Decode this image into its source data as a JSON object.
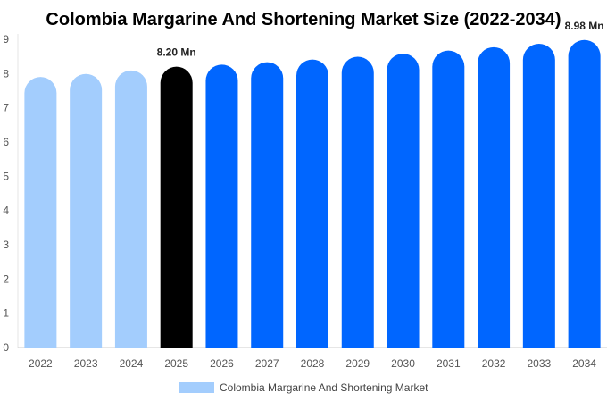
{
  "chart_data": {
    "type": "bar",
    "title": "Colombia Margarine And Shortening Market Size (2022-2034)",
    "xlabel": "",
    "ylabel": "",
    "categories": [
      "2022",
      "2023",
      "2024",
      "2025",
      "2026",
      "2027",
      "2028",
      "2029",
      "2030",
      "2031",
      "2032",
      "2033",
      "2034"
    ],
    "series": [
      {
        "name": "Colombia Margarine And Shortening Market",
        "values": [
          7.9,
          7.99,
          8.09,
          8.2,
          8.26,
          8.33,
          8.41,
          8.49,
          8.58,
          8.67,
          8.77,
          8.87,
          8.98
        ]
      }
    ],
    "data_labels": [
      {
        "category": "2025",
        "text": "8.20 Mn"
      },
      {
        "category": "2034",
        "text": "8.98 Mn"
      }
    ],
    "ylim": [
      0,
      9
    ],
    "yticks": [
      0,
      1,
      2,
      3,
      4,
      5,
      6,
      7,
      8,
      9
    ],
    "grid": false,
    "legend": "bottom-center",
    "colors": {
      "historical": "#a3cdfd",
      "current": "#000000",
      "forecast": "#0066ff",
      "legend_swatch": "#a3cdfd"
    },
    "bar_color_groups": [
      "historical",
      "historical",
      "historical",
      "current",
      "forecast",
      "forecast",
      "forecast",
      "forecast",
      "forecast",
      "forecast",
      "forecast",
      "forecast",
      "forecast"
    ]
  }
}
